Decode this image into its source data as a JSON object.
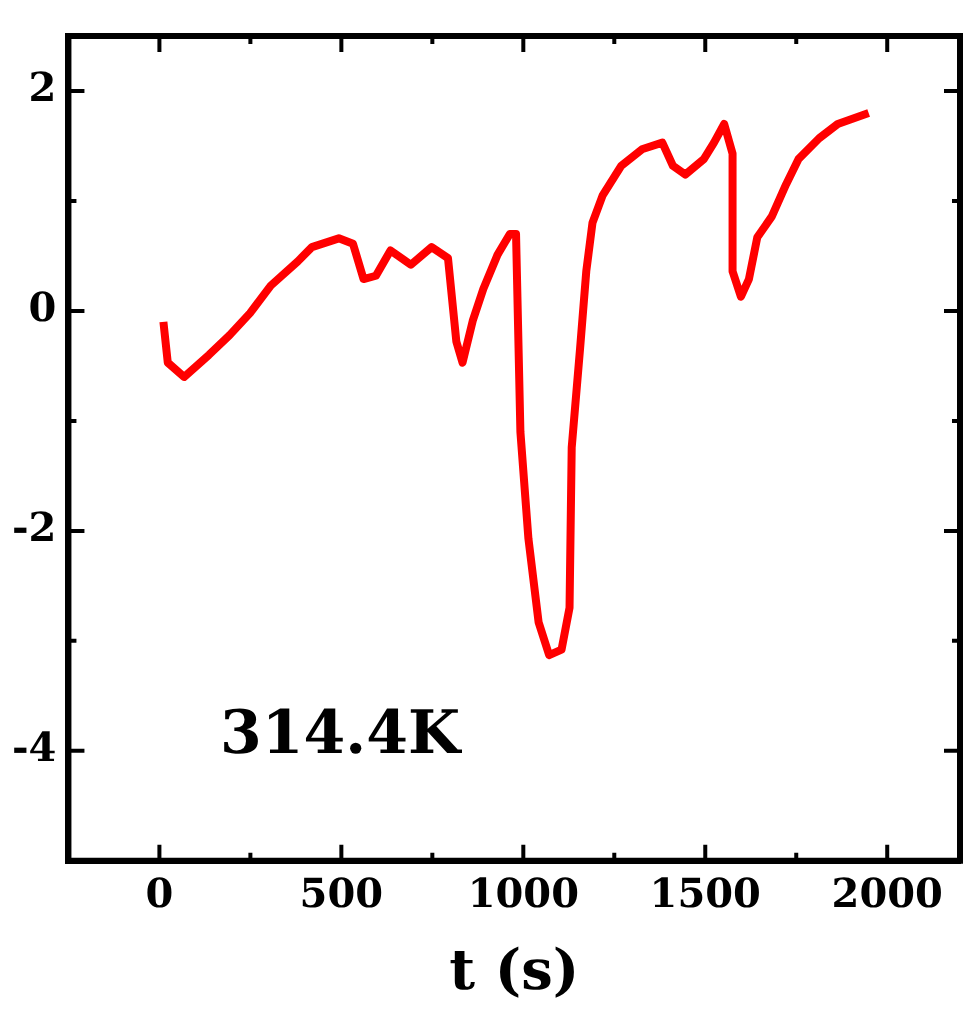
{
  "chart_data": {
    "type": "line",
    "xlabel": "t (s)",
    "annotations": [
      "314.4K"
    ],
    "x": [
      11,
      23,
      68,
      136,
      193,
      249,
      306,
      380,
      419,
      493,
      532,
      561,
      595,
      635,
      691,
      748,
      793,
      816,
      833,
      861,
      890,
      929,
      963,
      980,
      992,
      1014,
      1042,
      1071,
      1105,
      1127,
      1133,
      1156,
      1173,
      1190,
      1218,
      1269,
      1326,
      1382,
      1411,
      1445,
      1496,
      1524,
      1552,
      1575,
      1575,
      1598,
      1620,
      1643,
      1683,
      1722,
      1756,
      1813,
      1864,
      1949
    ],
    "series": [
      {
        "color": "#ff0000",
        "values": [
          -0.1,
          -0.47,
          -0.6,
          -0.4,
          -0.22,
          -0.02,
          0.23,
          0.45,
          0.58,
          0.66,
          0.61,
          0.29,
          0.32,
          0.55,
          0.42,
          0.58,
          0.48,
          -0.28,
          -0.47,
          -0.09,
          0.2,
          0.51,
          0.7,
          0.7,
          -1.1,
          -2.07,
          -2.83,
          -3.13,
          -3.08,
          -2.7,
          -1.24,
          -0.34,
          0.36,
          0.8,
          1.05,
          1.32,
          1.47,
          1.53,
          1.32,
          1.24,
          1.38,
          1.53,
          1.7,
          1.43,
          0.36,
          0.13,
          0.29,
          0.67,
          0.86,
          1.15,
          1.38,
          1.57,
          1.7,
          1.8
        ]
      }
    ],
    "xlim": [
      -250,
      2200
    ],
    "ylim": [
      -5,
      2.5
    ],
    "xticks": [
      0,
      {
        "value": 250,
        "label": null
      },
      500,
      {
        "value": 750,
        "label": null
      },
      1000,
      {
        "value": 1250,
        "label": null
      },
      1500,
      {
        "value": 1750,
        "label": null
      },
      2000
    ],
    "yticks": [
      -4,
      {
        "value": -3,
        "label": null
      },
      -2,
      {
        "value": -1,
        "label": null
      },
      0,
      {
        "value": 1,
        "label": null
      },
      2
    ],
    "grid": false,
    "legend": false,
    "marker": "none",
    "line_style": "solid"
  }
}
